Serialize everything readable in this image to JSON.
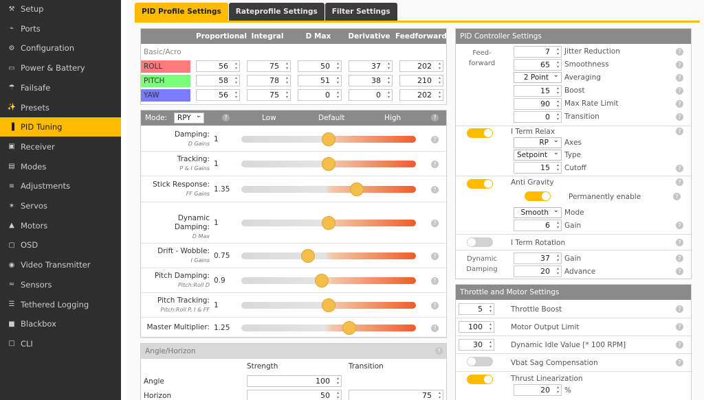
{
  "sidebar": {
    "items": [
      {
        "label": "Setup",
        "icon": "wrench-icon",
        "glyph": "⚒"
      },
      {
        "label": "Ports",
        "icon": "plug-icon",
        "glyph": "⌁"
      },
      {
        "label": "Configuration",
        "icon": "gear-icon",
        "glyph": "⚙"
      },
      {
        "label": "Power & Battery",
        "icon": "battery-icon",
        "glyph": "▭"
      },
      {
        "label": "Failsafe",
        "icon": "parachute-icon",
        "glyph": "☂"
      },
      {
        "label": "Presets",
        "icon": "magic-wand-icon",
        "glyph": "✨"
      },
      {
        "label": "PID Tuning",
        "icon": "chart-bar-icon",
        "glyph": "▐",
        "active": true
      },
      {
        "label": "Receiver",
        "icon": "receiver-icon",
        "glyph": "▣"
      },
      {
        "label": "Modes",
        "icon": "toggle-icon",
        "glyph": "▤"
      },
      {
        "label": "Adjustments",
        "icon": "sliders-icon",
        "glyph": "≡"
      },
      {
        "label": "Servos",
        "icon": "servo-icon",
        "glyph": "✶"
      },
      {
        "label": "Motors",
        "icon": "motor-icon",
        "glyph": "▲"
      },
      {
        "label": "OSD",
        "icon": "osd-icon",
        "glyph": "▢"
      },
      {
        "label": "Video Transmitter",
        "icon": "antenna-icon",
        "glyph": "◉"
      },
      {
        "label": "Sensors",
        "icon": "sensor-icon",
        "glyph": "≈"
      },
      {
        "label": "Tethered Logging",
        "icon": "logging-icon",
        "glyph": "☰"
      },
      {
        "label": "Blackbox",
        "icon": "blackbox-icon",
        "glyph": "■"
      },
      {
        "label": "CLI",
        "icon": "terminal-icon",
        "glyph": "□"
      }
    ]
  },
  "tabs": [
    "PID Profile Settings",
    "Rateprofile Settings",
    "Filter Settings"
  ],
  "pid": {
    "headers": [
      "Proportional",
      "Integral",
      "D Max",
      "Derivative",
      "Feedforward"
    ],
    "group": "Basic/Acro",
    "rows": [
      {
        "axis": "ROLL",
        "color": "#ff7b7b",
        "values": [
          "56",
          "75",
          "50",
          "37",
          "202"
        ]
      },
      {
        "axis": "PITCH",
        "color": "#7bff7b",
        "values": [
          "58",
          "78",
          "51",
          "38",
          "210"
        ]
      },
      {
        "axis": "YAW",
        "color": "#7b7bff",
        "values": [
          "56",
          "75",
          "0",
          "0",
          "202"
        ]
      }
    ]
  },
  "sliders": {
    "mode_label": "Mode:",
    "mode_value": "RPY",
    "low": "Low",
    "default": "Default",
    "high": "High",
    "rows": [
      {
        "label": "Damping:",
        "sub": "D Gains",
        "value": "1",
        "pos": 0.5
      },
      {
        "label": "Tracking:",
        "sub": "P & I Gains",
        "value": "1",
        "pos": 0.5
      },
      {
        "label": "Stick Response:",
        "sub": "FF Gains",
        "value": "1.35",
        "pos": 0.66
      },
      {
        "label": "Dynamic Damping:",
        "sub": "D Max",
        "value": "1",
        "pos": 0.5
      },
      {
        "label": "Drift - Wobble:",
        "sub": "I Gains",
        "value": "0.75",
        "pos": 0.38
      },
      {
        "label": "Pitch Damping:",
        "sub": "Pitch:Roll D",
        "value": "0.9",
        "pos": 0.46
      },
      {
        "label": "Pitch Tracking:",
        "sub": "Pitch:Roll P, I & FF",
        "value": "1",
        "pos": 0.5
      },
      {
        "label": "Master Multiplier:",
        "sub": "",
        "value": "1.25",
        "pos": 0.62
      }
    ]
  },
  "angle": {
    "title": "Angle/Horizon",
    "strength": "Strength",
    "transition": "Transition",
    "angle_label": "Angle",
    "angle_strength": "100",
    "horizon_label": "Horizon",
    "horizon_strength": "50",
    "horizon_transition": "75"
  },
  "controller": {
    "title": "PID Controller Settings",
    "ff_label": "Feed-forward",
    "ff": [
      {
        "type": "num",
        "value": "7",
        "label": "Jitter Reduction"
      },
      {
        "type": "num",
        "value": "65",
        "label": "Smoothness"
      },
      {
        "type": "sel",
        "value": "2 Point",
        "label": "Averaging"
      },
      {
        "type": "num",
        "value": "15",
        "label": "Boost"
      },
      {
        "type": "num",
        "value": "90",
        "label": "Max Rate Limit"
      },
      {
        "type": "num",
        "value": "0",
        "label": "Transition"
      }
    ],
    "iterm_relax": "I Term Relax",
    "axes_value": "RP",
    "axes_label": "Axes",
    "type_value": "Setpoint",
    "type_label": "Type",
    "cutoff_value": "15",
    "cutoff_label": "Cutoff",
    "anti_gravity": "Anti Gravity",
    "perm_label": "Permanently enable",
    "ag_mode_value": "Smooth",
    "ag_mode_label": "Mode",
    "ag_gain_value": "6",
    "ag_gain_label": "Gain",
    "iterm_rotation": "I Term Rotation",
    "dyn_damping": "Dynamic Damping",
    "dd_gain_value": "37",
    "dd_gain_label": "Gain",
    "dd_adv_value": "20",
    "dd_adv_label": "Advance"
  },
  "throttle": {
    "title": "Throttle and Motor Settings",
    "boost_value": "5",
    "boost_label": "Throttle Boost",
    "limit_value": "100",
    "limit_label": "Motor Output Limit",
    "idle_value": "30",
    "idle_label": "Dynamic Idle Value [* 100 RPM]",
    "vbat_label": "Vbat Sag Compensation",
    "thrust_label": "Thrust Linearization",
    "thrust_value": "20",
    "thrust_unit": "%"
  }
}
